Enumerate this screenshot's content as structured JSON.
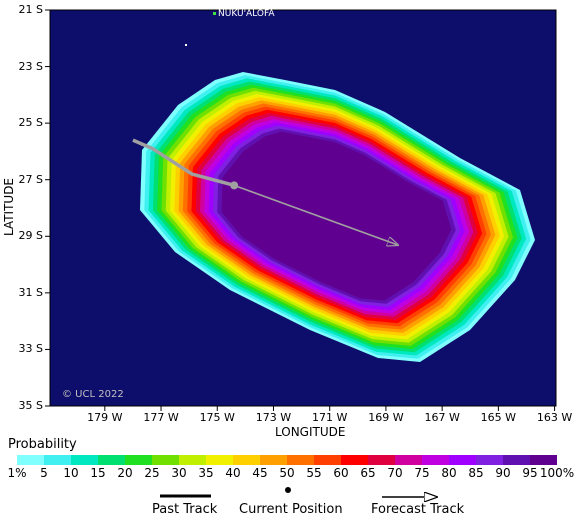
{
  "map": {
    "place_label": "NUKU'ALOFA",
    "copyright": "© UCL 2022",
    "x_axis_title": "LONGITUDE",
    "y_axis_title": "LATITUDE",
    "x_ticks": [
      "179 W",
      "177 W",
      "175 W",
      "173 W",
      "171 W",
      "169 W",
      "167 W",
      "165 W",
      "163 W"
    ],
    "y_ticks": [
      "21 S",
      "23 S",
      "25 S",
      "27 S",
      "29 S",
      "31 S",
      "33 S",
      "35 S"
    ],
    "ocean_color": "#0d0d6b",
    "track_color": "#a0a0a0",
    "past_track": [
      [
        -178.0,
        -25.6
      ],
      [
        -177.3,
        -25.9
      ],
      [
        -175.9,
        -26.8
      ],
      [
        -174.4,
        -27.2
      ]
    ],
    "current_position": [
      -174.4,
      -27.2
    ],
    "forecast_end": [
      -168.6,
      -29.3
    ]
  },
  "legend": {
    "title": "Probability",
    "labels": [
      "1%",
      "5",
      "10",
      "15",
      "20",
      "25",
      "30",
      "35",
      "40",
      "45",
      "50",
      "55",
      "60",
      "65",
      "70",
      "75",
      "80",
      "85",
      "90",
      "95",
      "100%"
    ],
    "colors": [
      "#80ffff",
      "#40f0f0",
      "#00e8c0",
      "#00e070",
      "#20e020",
      "#70e000",
      "#c0f000",
      "#f0f000",
      "#ffd000",
      "#ffa000",
      "#ff7000",
      "#ff4000",
      "#ff0000",
      "#e00040",
      "#d000a0",
      "#c000e0",
      "#a000ff",
      "#8020e0",
      "#6010b0",
      "#600090"
    ]
  },
  "key": {
    "past_track": "Past Track",
    "current_position": "Current Position",
    "forecast_track": "Forecast Track"
  }
}
